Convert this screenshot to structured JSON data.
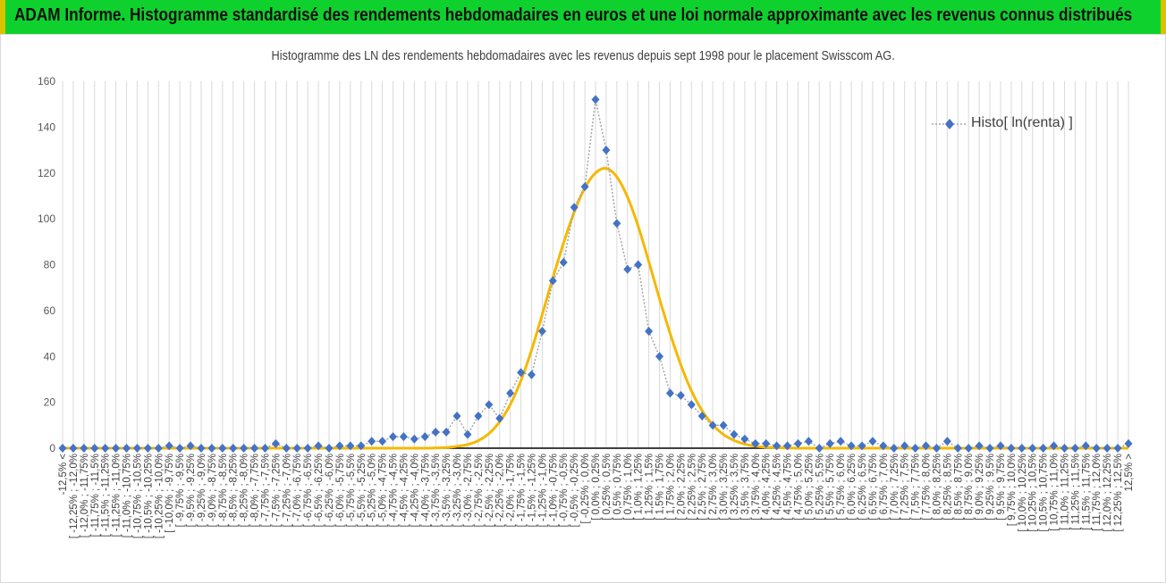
{
  "banner": {
    "title": "ADAM Informe. Histogramme standardisé des rendements hebdomadaires en euros et une loi normale approximante avec les revenus connus distribués"
  },
  "colors": {
    "banner_bg": "#0fd12e",
    "banner_edge": "#d9c300",
    "histogram_marker": "#4472c4",
    "normal_curve": "#f5b800",
    "gridline": "#d9d9d9"
  },
  "chart_data": {
    "type": "line",
    "title": "Histogramme des LN des rendements hebdomadaires avec les revenus depuis sept 1998 pour le placement Swisscom AG.",
    "xlabel": "",
    "ylabel": "",
    "ylim": [
      0,
      160
    ],
    "yticks": [
      0,
      20,
      40,
      60,
      80,
      100,
      120,
      140,
      160
    ],
    "grid": {
      "vertical": true,
      "horizontal": false
    },
    "legend_position": "top-right",
    "categories": [
      "-12,5% <",
      "[ -12,25% ; -12,0%",
      "[ -12,0% ; -11,75%",
      "[ -11,75% ; -11,5%",
      "[ -11,5% ; -11,25%",
      "[ -11,25% ; -11,0%",
      "[ -11,0% ; -10,75%",
      "[ -10,75% ; -10,5%",
      "[ -10,5% ; -10,25%",
      "[ -10,25% ; -10,0%",
      "[ -10,0% ; -9,75%",
      "[ -9,75% ; -9,5%",
      "[ -9,5% ; -9,25%",
      "[ -9,25% ; -9,0%",
      "[ -9,0% ; -8,75%",
      "[ -8,75% ; -8,5%",
      "[ -8,5% ; -8,25%",
      "[ -8,25% ; -8,0%",
      "[ -8,0% ; -7,75%",
      "[ -7,75% ; -7,5%",
      "[ -7,5% ; -7,25%",
      "[ -7,25% ; -7,0%",
      "[ -7,0% ; -6,75%",
      "[ -6,75% ; -6,5%",
      "[ -6,5% ; -6,25%",
      "[ -6,25% ; -6,0%",
      "[ -6,0% ; -5,75%",
      "[ -5,75% ; -5,5%",
      "[ -5,5% ; -5,25%",
      "[ -5,25% ; -5,0%",
      "[ -5,0% ; -4,75%",
      "[ -4,75% ; -4,5%",
      "[ -4,5% ; -4,25%",
      "[ -4,25% ; -4,0%",
      "[ -4,0% ; -3,75%",
      "[ -3,75% ; -3,5%",
      "[ -3,5% ; -3,25%",
      "[ -3,25% ; -3,0%",
      "[ -3,0% ; -2,75%",
      "[ -2,75% ; -2,5%",
      "[ -2,5% ; -2,25%",
      "[ -2,25% ; -2,0%",
      "[ -2,0% ; -1,75%",
      "[ -1,75% ; -1,5%",
      "[ -1,5% ; -1,25%",
      "[ -1,25% ; -1,0%",
      "[ -1,0% ; -0,75%",
      "[ -0,75% ; -0,5%",
      "[ -0,5% ; -0,25%",
      "[ -0,25% ; 0,0%",
      "[ 0,0% ; 0,25%",
      "[ 0,25% ; 0,5%",
      "[ 0,5% ; 0,75%",
      "[ 0,75% ; 1,0%",
      "[ 1,0% ; 1,25%",
      "[ 1,25% ; 1,5%",
      "[ 1,5% ; 1,75%",
      "[ 1,75% ; 2,0%",
      "[ 2,0% ; 2,25%",
      "[ 2,25% ; 2,5%",
      "[ 2,5% ; 2,75%",
      "[ 2,75% ; 3,0%",
      "[ 3,0% ; 3,25%",
      "[ 3,25% ; 3,5%",
      "[ 3,5% ; 3,75%",
      "[ 3,75% ; 4,0%",
      "[ 4,0% ; 4,25%",
      "[ 4,25% ; 4,5%",
      "[ 4,5% ; 4,75%",
      "[ 4,75% ; 5,0%",
      "[ 5,0% ; 5,25%",
      "[ 5,25% ; 5,5%",
      "[ 5,5% ; 5,75%",
      "[ 5,75% ; 6,0%",
      "[ 6,0% ; 6,25%",
      "[ 6,25% ; 6,5%",
      "[ 6,5% ; 6,75%",
      "[ 6,75% ; 7,0%",
      "[ 7,0% ; 7,25%",
      "[ 7,25% ; 7,5%",
      "[ 7,5% ; 7,75%",
      "[ 7,75% ; 8,0%",
      "[ 8,0% ; 8,25%",
      "[ 8,25% ; 8,5%",
      "[ 8,5% ; 8,75%",
      "[ 8,75% ; 9,0%",
      "[ 9,0% ; 9,25%",
      "[ 9,25% ; 9,5%",
      "[ 9,5% ; 9,75%",
      "[ 9,75% ; 10,0%",
      "[ 10,0% ; 10,25%",
      "[ 10,25% ; 10,5%",
      "[ 10,5% ; 10,75%",
      "[ 10,75% ; 11,0%",
      "[ 11,0% ; 11,25%",
      "[ 11,25% ; 11,5%",
      "[ 11,5% ; 11,75%",
      "[ 11,75% ; 12,0%",
      "[ 12,0% ; 12,25%",
      "[ 12,25% ; 12,5%",
      "12,5% >"
    ],
    "series": [
      {
        "name": "Histo[ ln(renta) ]",
        "style": "dotted-line-diamond",
        "values": [
          0,
          0,
          0,
          0,
          0,
          0,
          0,
          0,
          0,
          0,
          1,
          0,
          1,
          0,
          0,
          0,
          0,
          0,
          0,
          0,
          2,
          0,
          0,
          0,
          1,
          0,
          1,
          1,
          1,
          3,
          3,
          5,
          5,
          4,
          5,
          7,
          7,
          14,
          6,
          14,
          19,
          13,
          24,
          33,
          32,
          51,
          73,
          81,
          105,
          114,
          152,
          130,
          98,
          78,
          80,
          51,
          40,
          24,
          23,
          19,
          14,
          10,
          10,
          6,
          4,
          2,
          2,
          1,
          1,
          2,
          3,
          0,
          2,
          3,
          1,
          1,
          3,
          1,
          0,
          1,
          0,
          1,
          0,
          3,
          0,
          0,
          1,
          0,
          1,
          0,
          0,
          0,
          0,
          1,
          0,
          0,
          1,
          0,
          0,
          0,
          2
        ]
      },
      {
        "name": "",
        "style": "smooth-line",
        "values": [
          0,
          0,
          0,
          0,
          0,
          0,
          0,
          0,
          0,
          0,
          0,
          0,
          0,
          0,
          0,
          0,
          0,
          0,
          0,
          0,
          0,
          0,
          0,
          0,
          0,
          0,
          0,
          0,
          0,
          0,
          0,
          0,
          0,
          0,
          0,
          0.1,
          0.3,
          0.8,
          1.6,
          3.3,
          6.4,
          11.5,
          19,
          29.5,
          42.8,
          58.3,
          74.3,
          89.4,
          102.9,
          113.5,
          120,
          122,
          118.3,
          109.5,
          96.8,
          81.3,
          65.2,
          50,
          36.4,
          25,
          16.4,
          10.2,
          6,
          3.4,
          1.8,
          0.9,
          0.4,
          0.2,
          0.1,
          0,
          0,
          0,
          0,
          0,
          0,
          0,
          0,
          0,
          0,
          0,
          0,
          0,
          0,
          0,
          0,
          0,
          0,
          0,
          0,
          0,
          0,
          0,
          0,
          0,
          0,
          0,
          0,
          0,
          0,
          0,
          0
        ]
      }
    ]
  }
}
